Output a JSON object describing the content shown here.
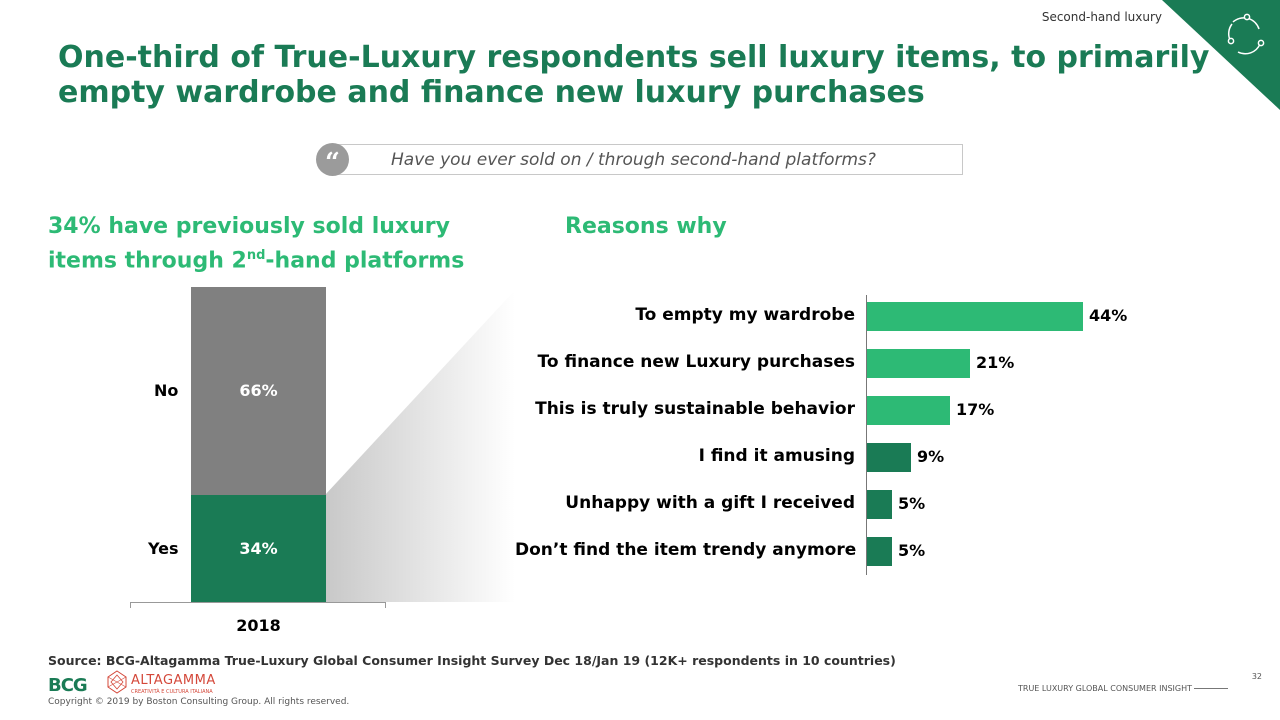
{
  "header": {
    "section_tag": "Second-hand luxury",
    "title": "One-third of True-Luxury respondents sell luxury items, to primarily empty wardrobe and finance new luxury purchases"
  },
  "question": {
    "quote_mark": "“",
    "text": "Have you ever sold on / through second-hand platforms?"
  },
  "left_panel": {
    "heading_part1": "34% have previously sold luxury items through 2",
    "heading_sup": "nd",
    "heading_part2": "-hand platforms"
  },
  "right_panel": {
    "heading": "Reasons why"
  },
  "colors": {
    "brand_dark_green": "#1a7b55",
    "bright_green": "#2dba75",
    "gray_no": "#808080"
  },
  "chart_data": [
    {
      "type": "bar",
      "stacked": true,
      "categories": [
        "2018"
      ],
      "series": [
        {
          "name": "Yes",
          "values": [
            34
          ],
          "label": "34%",
          "color": "#1a7b55"
        },
        {
          "name": "No",
          "values": [
            66
          ],
          "label": "66%",
          "color": "#808080"
        }
      ],
      "ylim": [
        0,
        100
      ]
    },
    {
      "type": "bar",
      "orientation": "horizontal",
      "categories": [
        "To empty my wardrobe",
        "To finance new Luxury purchases",
        "This is truly sustainable behavior",
        "I find it amusing",
        "Unhappy with a gift I received",
        "Don’t find the item trendy anymore"
      ],
      "values": [
        44,
        21,
        17,
        9,
        5,
        5
      ],
      "value_labels": [
        "44%",
        "21%",
        "17%",
        "9%",
        "5%",
        "5%"
      ],
      "colors": [
        "#2dba75",
        "#2dba75",
        "#2dba75",
        "#1a7b55",
        "#1a7b55",
        "#1a7b55"
      ],
      "xlim": [
        0,
        50
      ]
    }
  ],
  "footer": {
    "source": "Source: BCG-Altagamma True-Luxury Global Consumer Insight Survey Dec 18/Jan 19 (12K+ respondents in 10 countries)",
    "copyright": "Copyright © 2019 by Boston Consulting Group. All rights reserved.",
    "report_name": "TRUE LUXURY GLOBAL CONSUMER INSIGHT",
    "page_number": "32",
    "logo_bcg": "BCG",
    "logo_altagamma": "ALTAGAMMA",
    "logo_altagamma_sub": "CREATIVITÀ E CULTURA ITALIANA"
  }
}
